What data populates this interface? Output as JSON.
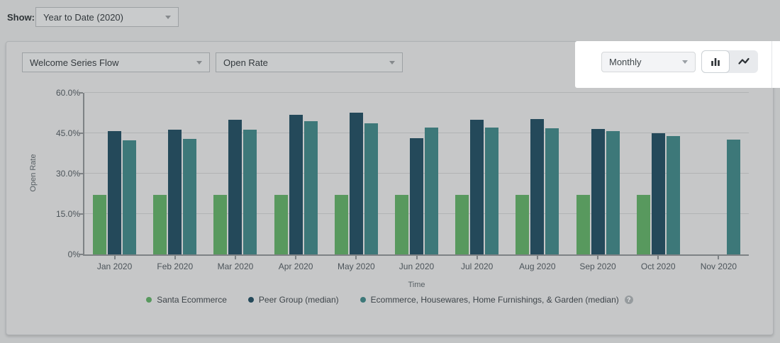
{
  "show_bar": {
    "label": "Show:",
    "value": "Year to Date (2020)"
  },
  "panel": {
    "flow_dropdown_value": "Welcome Series Flow",
    "metric_dropdown_value": "Open Rate",
    "interval_dropdown_value": "Monthly"
  },
  "colors": {
    "background": "#c2c4c5",
    "panel_background": "#c6c7c8",
    "spotlight": "#ffffff",
    "axis": "#7e8285",
    "gridline": "#b1b3b4",
    "series_green": "#58995e",
    "series_dark_teal": "#24495a",
    "series_teal": "#3d7879"
  },
  "chart_data": {
    "type": "bar",
    "title": "",
    "xlabel": "Time",
    "ylabel": "Open Rate",
    "ylim": [
      0,
      60
    ],
    "grid": true,
    "legend_position": "bottom",
    "legend_help_icon": "?",
    "ytick_values": [
      0,
      15,
      30,
      45,
      60
    ],
    "ytick_labels": [
      "0%",
      "15.0%",
      "30.0%",
      "45.0%",
      "60.0%"
    ],
    "categories": [
      "Jan 2020",
      "Feb 2020",
      "Mar 2020",
      "Apr 2020",
      "May 2020",
      "Jun 2020",
      "Jul 2020",
      "Aug 2020",
      "Sep 2020",
      "Oct 2020",
      "Nov 2020"
    ],
    "series": [
      {
        "name": "Santa Ecommerce",
        "color": "#58995e",
        "values": [
          22,
          22,
          22,
          22,
          22,
          22,
          22,
          22,
          22,
          22,
          null
        ]
      },
      {
        "name": "Peer Group (median)",
        "color": "#24495a",
        "values": [
          45.8,
          46.3,
          50.0,
          51.9,
          52.7,
          43.2,
          49.9,
          50.3,
          46.6,
          45.1,
          null
        ]
      },
      {
        "name": "Ecommerce, Housewares, Home Furnishings, & Garden (median)",
        "color": "#3d7879",
        "values": [
          42.4,
          43.0,
          46.2,
          49.4,
          48.7,
          47.2,
          47.0,
          46.9,
          45.7,
          44.0,
          42.6
        ]
      }
    ]
  }
}
